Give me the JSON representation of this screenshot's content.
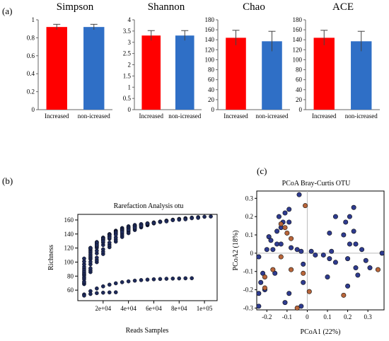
{
  "figure": {
    "panel_labels": [
      "(a)",
      "(b)",
      "(c)"
    ]
  },
  "colors": {
    "increased": "#ff0000",
    "non_increased": "#2f6fc6",
    "scatter_blue": "#2e3b8f",
    "scatter_orange": "#b8653a",
    "rarefaction_point": "#1e2a5a"
  },
  "chart_data": [
    {
      "type": "bar",
      "title": "Simpson",
      "categories": [
        "Increased",
        "non-icreased"
      ],
      "values": [
        0.92,
        0.92
      ],
      "errors": [
        0.03,
        0.03
      ],
      "ylim": [
        0,
        1
      ],
      "yticks": [
        0,
        0.2,
        0.4,
        0.6,
        0.8,
        1
      ],
      "ytick_labels": [
        "0",
        "0.2",
        "0.4",
        "0.6",
        "0.8",
        "1"
      ]
    },
    {
      "type": "bar",
      "title": "Shannon",
      "categories": [
        "Increased",
        "non-icreased"
      ],
      "values": [
        3.3,
        3.3
      ],
      "errors": [
        0.22,
        0.22
      ],
      "ylim": [
        0,
        4
      ],
      "yticks": [
        0,
        0.5,
        1,
        1.5,
        2,
        2.5,
        3,
        3.5,
        4
      ],
      "ytick_labels": [
        "0",
        "0.5",
        "1",
        "1.5",
        "2",
        "2.5",
        "3",
        "3.5",
        "4"
      ]
    },
    {
      "type": "bar",
      "title": "Chao",
      "categories": [
        "Increased",
        "non-icreased"
      ],
      "values": [
        144,
        137
      ],
      "errors": [
        15,
        20
      ],
      "ylim": [
        0,
        180
      ],
      "yticks": [
        0,
        20,
        40,
        60,
        80,
        100,
        120,
        140,
        160,
        180
      ],
      "ytick_labels": [
        "0",
        "20",
        "40",
        "60",
        "80",
        "100",
        "120",
        "140",
        "160",
        "180"
      ]
    },
    {
      "type": "bar",
      "title": "ACE",
      "categories": [
        "Increased",
        "non-icreased"
      ],
      "values": [
        144,
        137
      ],
      "errors": [
        15,
        20
      ],
      "ylim": [
        0,
        180
      ],
      "yticks": [
        0,
        20,
        40,
        60,
        80,
        100,
        120,
        140,
        160,
        180
      ],
      "ytick_labels": [
        "0",
        "20",
        "40",
        "60",
        "80",
        "100",
        "120",
        "140",
        "160",
        "180"
      ]
    },
    {
      "type": "scatter",
      "title": "Rarefaction Analysis otu",
      "xlabel": "Reads Samples",
      "ylabel": "Richness",
      "xlim": [
        0,
        110000
      ],
      "ylim": [
        45,
        168
      ],
      "xticks": [
        20000,
        40000,
        60000,
        80000,
        100000
      ],
      "xtick_labels": [
        "2e+04",
        "4e+04",
        "6e+04",
        "8e+04",
        "1e+05"
      ],
      "yticks": [
        60,
        80,
        100,
        120,
        140,
        160
      ],
      "ytick_labels": [
        "60",
        "80",
        "100",
        "120",
        "140",
        "160"
      ],
      "sample_step": 5000,
      "curves": [
        {
          "max_x": 105000,
          "plateau": 165
        },
        {
          "max_x": 95000,
          "plateau": 163
        },
        {
          "max_x": 85000,
          "plateau": 161
        },
        {
          "max_x": 70000,
          "plateau": 158
        },
        {
          "max_x": 62000,
          "plateau": 156
        },
        {
          "max_x": 55000,
          "plateau": 155
        },
        {
          "max_x": 50000,
          "plateau": 152
        },
        {
          "max_x": 45000,
          "plateau": 149
        },
        {
          "max_x": 40000,
          "plateau": 146
        },
        {
          "max_x": 35000,
          "plateau": 143
        },
        {
          "max_x": 30000,
          "plateau": 139
        },
        {
          "max_x": 25000,
          "plateau": 135
        },
        {
          "max_x": 20000,
          "plateau": 130
        },
        {
          "max_x": 15000,
          "plateau": 124
        },
        {
          "max_x": 90000,
          "plateau": 77
        },
        {
          "max_x": 32000,
          "plateau": 57
        }
      ]
    },
    {
      "type": "scatter",
      "title": "PCoA Bray-Curtis OTU",
      "xlabel": "PCoA1 (22%)",
      "ylabel": "PCoA2 (18%)",
      "xlim": [
        -0.25,
        0.38
      ],
      "ylim": [
        -0.31,
        0.34
      ],
      "xticks": [
        -0.2,
        -0.1,
        0,
        0.1,
        0.2,
        0.3
      ],
      "xtick_labels": [
        "-0.2",
        "-0.1",
        "0",
        "0.1",
        "0.2",
        "0.3"
      ],
      "yticks": [
        -0.3,
        -0.2,
        -0.1,
        0,
        0.1,
        0.2,
        0.3
      ],
      "ytick_labels": [
        "-0.3",
        "-0.2",
        "-0.1",
        "0",
        "0.1",
        "0.2",
        "0.3"
      ],
      "groups": [
        {
          "color_key": "scatter_blue",
          "points": [
            [
              -0.04,
              0.32
            ],
            [
              -0.09,
              0.24
            ],
            [
              -0.11,
              0.22
            ],
            [
              -0.14,
              0.2
            ],
            [
              -0.12,
              0.17
            ],
            [
              -0.09,
              0.17
            ],
            [
              -0.13,
              0.14
            ],
            [
              -0.15,
              0.12
            ],
            [
              -0.19,
              0.09
            ],
            [
              -0.18,
              0.07
            ],
            [
              -0.15,
              0.05
            ],
            [
              -0.13,
              0.05
            ],
            [
              -0.2,
              0.02
            ],
            [
              -0.17,
              0.02
            ],
            [
              -0.08,
              0.03
            ],
            [
              -0.05,
              0.02
            ],
            [
              -0.03,
              0.01
            ],
            [
              0.02,
              0.01
            ],
            [
              0.04,
              -0.01
            ],
            [
              0.08,
              -0.01
            ],
            [
              0.11,
              -0.03
            ],
            [
              0.12,
              0.01
            ],
            [
              0.21,
              0.05
            ],
            [
              0.18,
              0.1
            ],
            [
              0.23,
              0.12
            ],
            [
              0.23,
              0.25
            ],
            [
              0.21,
              0.2
            ],
            [
              0.19,
              0.17
            ],
            [
              0.14,
              0.2
            ],
            [
              0.11,
              0.11
            ],
            [
              0.24,
              0.05
            ],
            [
              0.2,
              -0.03
            ],
            [
              0.24,
              -0.08
            ],
            [
              0.25,
              -0.12
            ],
            [
              0.2,
              -0.18
            ],
            [
              0.27,
              0.02
            ],
            [
              0.37,
              0.0
            ],
            [
              0.29,
              -0.04
            ],
            [
              0.31,
              -0.08
            ],
            [
              0.14,
              -0.05
            ],
            [
              0.1,
              -0.13
            ],
            [
              -0.24,
              -0.02
            ],
            [
              -0.22,
              -0.11
            ],
            [
              -0.23,
              -0.16
            ],
            [
              -0.24,
              -0.22
            ],
            [
              -0.21,
              -0.2
            ],
            [
              -0.16,
              -0.11
            ],
            [
              -0.09,
              -0.22
            ],
            [
              -0.02,
              -0.16
            ],
            [
              -0.03,
              -0.29
            ],
            [
              -0.11,
              -0.27
            ],
            [
              -0.24,
              -0.29
            ],
            [
              -0.02,
              -0.06
            ]
          ]
        },
        {
          "color_key": "scatter_orange",
          "points": [
            [
              -0.01,
              0.26
            ],
            [
              -0.13,
              0.16
            ],
            [
              -0.11,
              0.14
            ],
            [
              -0.1,
              0.11
            ],
            [
              -0.08,
              0.08
            ],
            [
              -0.08,
              -0.09
            ],
            [
              -0.13,
              -0.02
            ],
            [
              -0.17,
              -0.09
            ],
            [
              -0.21,
              -0.13
            ],
            [
              -0.21,
              -0.19
            ],
            [
              -0.02,
              -0.11
            ],
            [
              0.01,
              -0.21
            ],
            [
              0.18,
              -0.23
            ],
            [
              0.35,
              -0.09
            ],
            [
              -0.05,
              -0.3
            ]
          ]
        }
      ]
    }
  ]
}
